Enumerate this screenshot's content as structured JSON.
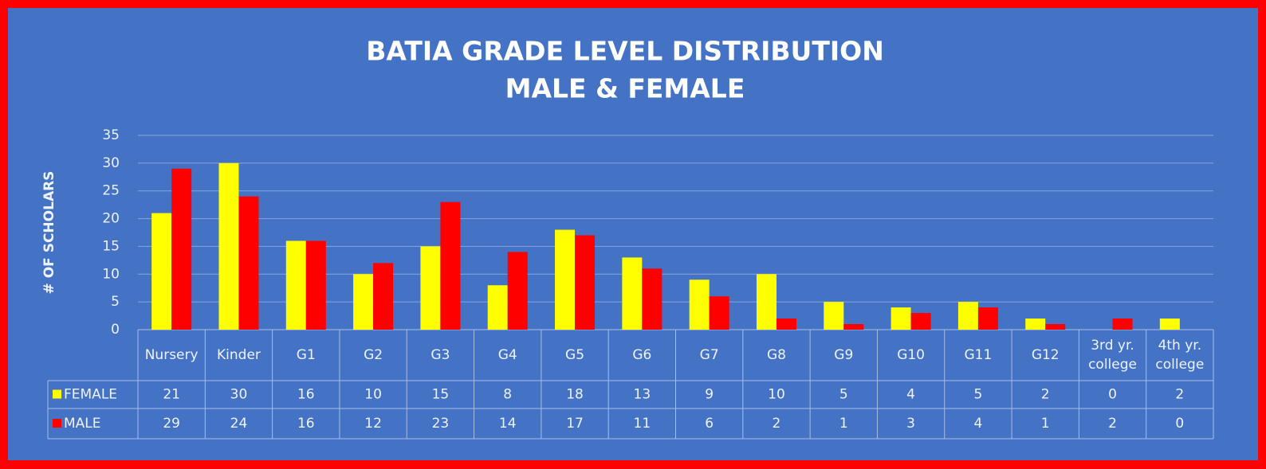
{
  "chart_data": {
    "type": "bar",
    "title": "BATIA GRADE LEVEL DISTRIBUTION",
    "subtitle": "MALE & FEMALE",
    "y_label": "# OF SCHOLARS",
    "categories": [
      "Nursery",
      "Kinder",
      "G1",
      "G2",
      "G3",
      "G4",
      "G5",
      "G6",
      "G7",
      "G8",
      "G9",
      "G10",
      "G11",
      "G12",
      "3rd yr. college",
      "4th yr. college"
    ],
    "series": [
      {
        "name": "FEMALE",
        "color": "#ffff00",
        "values": [
          21,
          30,
          16,
          10,
          15,
          8,
          18,
          13,
          9,
          10,
          5,
          4,
          5,
          2,
          0,
          2
        ]
      },
      {
        "name": "MALE",
        "color": "#ff0000",
        "values": [
          29,
          24,
          16,
          12,
          23,
          14,
          17,
          11,
          6,
          2,
          1,
          3,
          4,
          1,
          2,
          0
        ]
      }
    ],
    "ylim": [
      0,
      35
    ],
    "yticks": [
      0,
      5,
      10,
      15,
      20,
      25,
      30,
      35
    ],
    "grid": true
  }
}
